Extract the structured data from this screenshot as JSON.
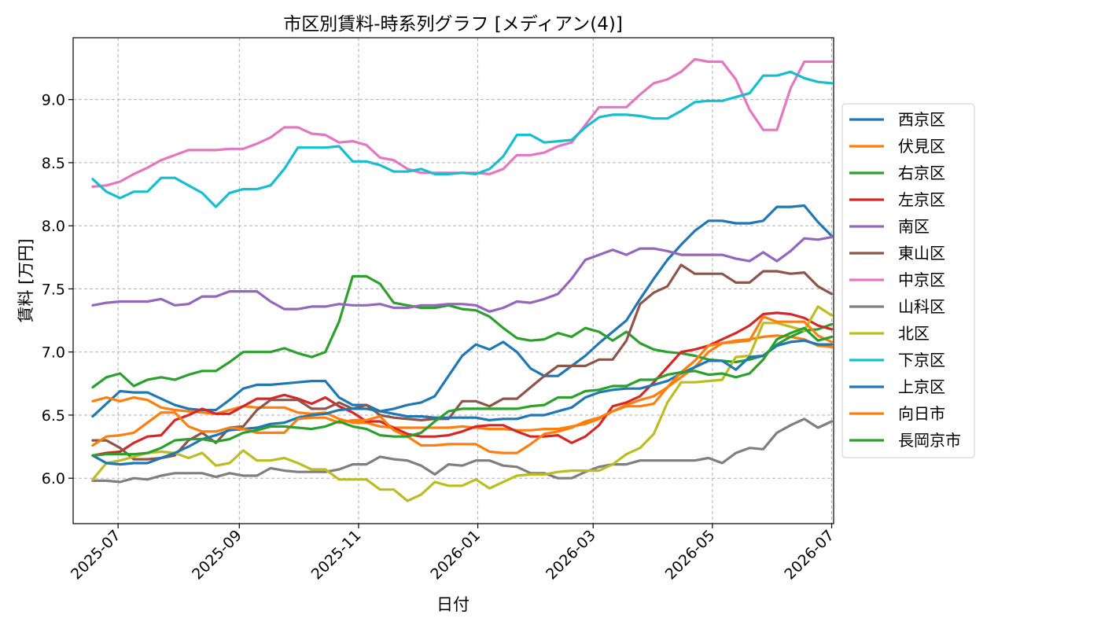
{
  "chart_data": {
    "type": "line",
    "title": "市区別賃料-時系列グラフ [メディアン(4)]",
    "xlabel": "日付",
    "ylabel": "賃料 [万円]",
    "x_start": "2025-06-18",
    "x_step_days": 7,
    "xlim": [
      "2025-06-08",
      "2026-07-02"
    ],
    "ylim": [
      5.64,
      9.49
    ],
    "x_ticks": [
      "2025-07",
      "2025-09",
      "2025-11",
      "2026-01",
      "2026-03",
      "2026-05",
      "2026-07"
    ],
    "x_tick_dates": [
      "2025-07-01",
      "2025-09-01",
      "2025-11-01",
      "2026-01-01",
      "2026-03-01",
      "2026-05-01",
      "2026-07-01"
    ],
    "y_ticks": [
      "6.0",
      "6.5",
      "7.0",
      "7.5",
      "8.0",
      "8.5",
      "9.0"
    ],
    "y_tick_values": [
      6.0,
      6.5,
      7.0,
      7.5,
      8.0,
      8.5,
      9.0
    ],
    "grid": true,
    "legend_position": "right",
    "series": [
      {
        "name": "西京区",
        "color": "#1f77b4",
        "values": [
          6.49,
          6.59,
          6.69,
          6.68,
          6.68,
          6.63,
          6.58,
          6.55,
          6.54,
          6.54,
          6.62,
          6.71,
          6.74,
          6.74,
          6.75,
          6.76,
          6.77,
          6.77,
          6.64,
          6.58,
          6.58,
          6.53,
          6.55,
          6.58,
          6.6,
          6.65,
          6.81,
          6.97,
          7.06,
          7.02,
          7.08,
          7.0,
          6.87,
          6.81,
          6.81,
          6.89,
          6.97,
          7.07,
          7.16,
          7.25,
          7.42,
          7.58,
          7.73,
          7.85,
          7.96,
          8.04,
          8.04,
          8.02,
          8.02,
          8.04,
          8.15,
          8.15,
          8.16,
          8.03,
          7.92
        ]
      },
      {
        "name": "伏見区",
        "color": "#ff7f0e",
        "values": [
          6.61,
          6.64,
          6.61,
          6.64,
          6.62,
          6.56,
          6.54,
          6.53,
          6.52,
          6.51,
          6.54,
          6.57,
          6.56,
          6.56,
          6.56,
          6.52,
          6.51,
          6.52,
          6.47,
          6.44,
          6.44,
          6.41,
          6.4,
          6.4,
          6.4,
          6.4,
          6.4,
          6.41,
          6.4,
          6.39,
          6.39,
          6.38,
          6.38,
          6.39,
          6.39,
          6.41,
          6.43,
          6.47,
          6.53,
          6.58,
          6.62,
          6.65,
          6.72,
          6.8,
          6.88,
          7.0,
          7.07,
          7.09,
          7.1,
          7.12,
          7.13,
          7.12,
          7.1,
          7.05,
          7.04
        ]
      },
      {
        "name": "右京区",
        "color": "#2ca02c",
        "values": [
          6.72,
          6.8,
          6.83,
          6.73,
          6.78,
          6.8,
          6.78,
          6.82,
          6.85,
          6.85,
          6.92,
          7.0,
          7.0,
          7.0,
          7.03,
          6.99,
          6.96,
          7.0,
          7.24,
          7.6,
          7.6,
          7.54,
          7.39,
          7.37,
          7.35,
          7.35,
          7.37,
          7.34,
          7.33,
          7.28,
          7.19,
          7.11,
          7.09,
          7.1,
          7.15,
          7.12,
          7.19,
          7.16,
          7.09,
          7.16,
          7.07,
          7.02,
          7.0,
          6.99,
          6.97,
          6.94,
          6.93,
          6.92,
          6.94,
          6.97,
          7.06,
          7.12,
          7.17,
          7.18,
          7.22
        ]
      },
      {
        "name": "左京区",
        "color": "#d62728",
        "values": [
          6.18,
          6.2,
          6.21,
          6.28,
          6.33,
          6.34,
          6.46,
          6.5,
          6.55,
          6.51,
          6.51,
          6.57,
          6.63,
          6.63,
          6.66,
          6.63,
          6.59,
          6.64,
          6.57,
          6.52,
          6.45,
          6.45,
          6.4,
          6.35,
          6.33,
          6.33,
          6.34,
          6.37,
          6.41,
          6.42,
          6.42,
          6.37,
          6.33,
          6.33,
          6.34,
          6.28,
          6.33,
          6.42,
          6.57,
          6.6,
          6.65,
          6.76,
          6.88,
          7.0,
          7.02,
          7.05,
          7.1,
          7.15,
          7.21,
          7.3,
          7.31,
          7.3,
          7.27,
          7.21,
          7.18
        ]
      },
      {
        "name": "南区",
        "color": "#9467bd",
        "values": [
          7.37,
          7.39,
          7.4,
          7.4,
          7.4,
          7.42,
          7.37,
          7.38,
          7.44,
          7.44,
          7.48,
          7.48,
          7.48,
          7.4,
          7.34,
          7.34,
          7.36,
          7.36,
          7.38,
          7.37,
          7.37,
          7.38,
          7.35,
          7.35,
          7.37,
          7.37,
          7.38,
          7.38,
          7.37,
          7.32,
          7.35,
          7.4,
          7.39,
          7.42,
          7.46,
          7.58,
          7.73,
          7.77,
          7.81,
          7.77,
          7.82,
          7.82,
          7.8,
          7.77,
          7.77,
          7.77,
          7.77,
          7.74,
          7.72,
          7.79,
          7.72,
          7.8,
          7.9,
          7.89,
          7.91
        ]
      },
      {
        "name": "東山区",
        "color": "#8c564b",
        "values": [
          6.3,
          6.3,
          6.24,
          6.15,
          6.15,
          6.16,
          6.18,
          6.3,
          6.36,
          6.28,
          6.4,
          6.41,
          6.54,
          6.62,
          6.62,
          6.62,
          6.55,
          6.55,
          6.6,
          6.55,
          6.58,
          6.5,
          6.48,
          6.47,
          6.46,
          6.47,
          6.47,
          6.61,
          6.61,
          6.57,
          6.63,
          6.63,
          6.72,
          6.81,
          6.89,
          6.89,
          6.89,
          6.94,
          6.94,
          7.09,
          7.38,
          7.47,
          7.52,
          7.69,
          7.62,
          7.62,
          7.62,
          7.55,
          7.55,
          7.64,
          7.64,
          7.62,
          7.63,
          7.52,
          7.46
        ]
      },
      {
        "name": "中京区",
        "color": "#e377c2",
        "values": [
          8.31,
          8.32,
          8.35,
          8.41,
          8.46,
          8.52,
          8.56,
          8.6,
          8.6,
          8.6,
          8.61,
          8.61,
          8.65,
          8.7,
          8.78,
          8.78,
          8.73,
          8.72,
          8.66,
          8.67,
          8.64,
          8.54,
          8.52,
          8.45,
          8.42,
          8.42,
          8.42,
          8.42,
          8.42,
          8.41,
          8.45,
          8.56,
          8.56,
          8.58,
          8.63,
          8.66,
          8.8,
          8.94,
          8.94,
          8.94,
          9.04,
          9.13,
          9.16,
          9.22,
          9.32,
          9.3,
          9.3,
          9.16,
          8.92,
          8.76,
          8.76,
          9.09,
          9.3,
          9.3,
          9.3
        ]
      },
      {
        "name": "山科区",
        "color": "#7f7f7f",
        "values": [
          5.98,
          5.98,
          5.97,
          6.0,
          5.99,
          6.02,
          6.04,
          6.04,
          6.04,
          6.01,
          6.04,
          6.02,
          6.02,
          6.08,
          6.06,
          6.05,
          6.05,
          6.05,
          6.07,
          6.11,
          6.11,
          6.17,
          6.15,
          6.14,
          6.1,
          6.03,
          6.11,
          6.1,
          6.14,
          6.14,
          6.1,
          6.09,
          6.04,
          6.04,
          6.0,
          6.0,
          6.05,
          6.09,
          6.11,
          6.11,
          6.14,
          6.14,
          6.14,
          6.14,
          6.14,
          6.16,
          6.12,
          6.2,
          6.24,
          6.23,
          6.36,
          6.42,
          6.47,
          6.4,
          6.45
        ]
      },
      {
        "name": "北区",
        "color": "#bcbd22",
        "values": [
          5.99,
          6.12,
          6.14,
          6.17,
          6.2,
          6.21,
          6.2,
          6.16,
          6.2,
          6.1,
          6.12,
          6.22,
          6.14,
          6.14,
          6.16,
          6.12,
          6.07,
          6.07,
          5.99,
          5.99,
          5.99,
          5.91,
          5.91,
          5.82,
          5.87,
          5.97,
          5.94,
          5.94,
          5.99,
          5.92,
          5.97,
          6.02,
          6.03,
          6.03,
          6.05,
          6.06,
          6.06,
          6.06,
          6.11,
          6.19,
          6.24,
          6.35,
          6.6,
          6.76,
          6.76,
          6.77,
          6.78,
          6.96,
          6.97,
          7.23,
          7.23,
          7.2,
          7.17,
          7.36,
          7.29
        ]
      },
      {
        "name": "下京区",
        "color": "#17becf",
        "values": [
          8.37,
          8.27,
          8.22,
          8.27,
          8.27,
          8.38,
          8.38,
          8.32,
          8.26,
          8.15,
          8.26,
          8.29,
          8.29,
          8.32,
          8.45,
          8.62,
          8.62,
          8.62,
          8.63,
          8.51,
          8.51,
          8.48,
          8.43,
          8.43,
          8.45,
          8.41,
          8.41,
          8.42,
          8.41,
          8.45,
          8.55,
          8.72,
          8.72,
          8.66,
          8.67,
          8.68,
          8.78,
          8.86,
          8.88,
          8.88,
          8.87,
          8.85,
          8.85,
          8.91,
          8.98,
          8.99,
          8.99,
          9.02,
          9.05,
          9.19,
          9.19,
          9.22,
          9.17,
          9.14,
          9.13
        ]
      },
      {
        "name": "上京区",
        "color": "#1f77b4",
        "values": [
          6.18,
          6.12,
          6.11,
          6.12,
          6.12,
          6.16,
          6.2,
          6.25,
          6.31,
          6.34,
          6.38,
          6.39,
          6.4,
          6.43,
          6.44,
          6.48,
          6.5,
          6.51,
          6.54,
          6.55,
          6.55,
          6.53,
          6.51,
          6.49,
          6.49,
          6.48,
          6.48,
          6.48,
          6.48,
          6.46,
          6.47,
          6.47,
          6.5,
          6.5,
          6.53,
          6.56,
          6.64,
          6.68,
          6.7,
          6.71,
          6.71,
          6.74,
          6.77,
          6.83,
          6.88,
          6.93,
          6.93,
          6.86,
          6.96,
          6.97,
          7.05,
          7.08,
          7.09,
          7.06,
          7.06
        ]
      },
      {
        "name": "向日市",
        "color": "#ff7f0e",
        "values": [
          6.26,
          6.33,
          6.34,
          6.36,
          6.44,
          6.52,
          6.52,
          6.41,
          6.37,
          6.37,
          6.4,
          6.39,
          6.36,
          6.36,
          6.36,
          6.47,
          6.48,
          6.48,
          6.44,
          6.46,
          6.46,
          6.49,
          6.38,
          6.33,
          6.26,
          6.26,
          6.27,
          6.27,
          6.27,
          6.21,
          6.2,
          6.2,
          6.27,
          6.35,
          6.37,
          6.4,
          6.45,
          6.48,
          6.53,
          6.57,
          6.57,
          6.59,
          6.72,
          6.84,
          6.93,
          7.05,
          7.07,
          7.08,
          7.09,
          7.28,
          7.24,
          7.24,
          7.24,
          7.13,
          7.08
        ]
      },
      {
        "name": "長岡京市",
        "color": "#2ca02c",
        "values": [
          6.18,
          6.19,
          6.19,
          6.19,
          6.2,
          6.24,
          6.3,
          6.31,
          6.31,
          6.29,
          6.31,
          6.36,
          6.38,
          6.41,
          6.41,
          6.4,
          6.39,
          6.41,
          6.45,
          6.41,
          6.39,
          6.34,
          6.33,
          6.33,
          6.36,
          6.45,
          6.53,
          6.55,
          6.55,
          6.55,
          6.55,
          6.55,
          6.57,
          6.58,
          6.64,
          6.64,
          6.69,
          6.7,
          6.73,
          6.73,
          6.78,
          6.78,
          6.82,
          6.84,
          6.85,
          6.82,
          6.83,
          6.8,
          6.83,
          6.94,
          7.1,
          7.15,
          7.19,
          7.09,
          7.12
        ]
      }
    ]
  }
}
